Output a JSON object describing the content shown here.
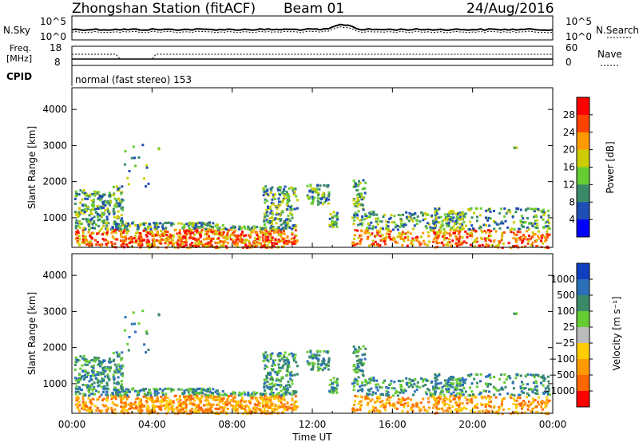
{
  "header": {
    "station": "Zhongshan Station (fitACF)",
    "beam": "Beam 01",
    "date": "24/Aug/2016"
  },
  "noise_panel": {
    "left_label": "N.Sky",
    "right_label": "N.Search",
    "left_ticks": [
      "10^5",
      "10^0"
    ],
    "right_ticks": [
      "10^5",
      "10^0"
    ]
  },
  "freq_panel": {
    "left_label_line1": "Freq.",
    "left_label_line2": "[MHz]",
    "left_ticks": [
      "18",
      "8"
    ],
    "right_label": "Nave",
    "right_ticks": [
      "60",
      "0"
    ],
    "cpid_label": "CPID",
    "mode_text": "normal (fast stereo) 153"
  },
  "colors": {
    "power_scale": [
      "#0000ff",
      "#1f4fb5",
      "#3a8a6a",
      "#66cc33",
      "#cccc00",
      "#ff9900",
      "#ff4400",
      "#ff0000"
    ],
    "velocity_scale": [
      "#1040c0",
      "#2a70b8",
      "#3a8a6a",
      "#66cc33",
      "#bbbbbb",
      "#ffcc00",
      "#ff9900",
      "#ff6600",
      "#ff0000"
    ]
  },
  "chart_data": [
    {
      "type": "heatmap",
      "name": "power",
      "ylabel": "Slant Range [km]",
      "yticks": [
        "1000",
        "2000",
        "3000",
        "4000"
      ],
      "ylim": [
        180,
        4600
      ],
      "xticks": [
        "00:00",
        "04:00",
        "08:00",
        "12:00",
        "16:00",
        "20:00",
        "00:00"
      ],
      "xlim_hours": [
        0,
        24
      ],
      "colorbar_label": "Power [dB]",
      "colorbar_ticks": [
        "4",
        "8",
        "12",
        "16",
        "20",
        "24",
        "28"
      ],
      "colorbar_range": [
        0,
        32
      ]
    },
    {
      "type": "heatmap",
      "name": "velocity",
      "ylabel": "Slant Range [km]",
      "yticks": [
        "1000",
        "2000",
        "3000",
        "4000"
      ],
      "ylim": [
        180,
        4600
      ],
      "xticks": [
        "00:00",
        "04:00",
        "08:00",
        "12:00",
        "16:00",
        "20:00",
        "00:00"
      ],
      "xlabel": "Time UT",
      "xlim_hours": [
        0,
        24
      ],
      "colorbar_label": "Velocity [m s⁻¹]",
      "colorbar_ticks": [
        "1000",
        "500",
        "100",
        "25",
        "−25",
        "−100",
        "−500",
        "−1000"
      ]
    }
  ]
}
